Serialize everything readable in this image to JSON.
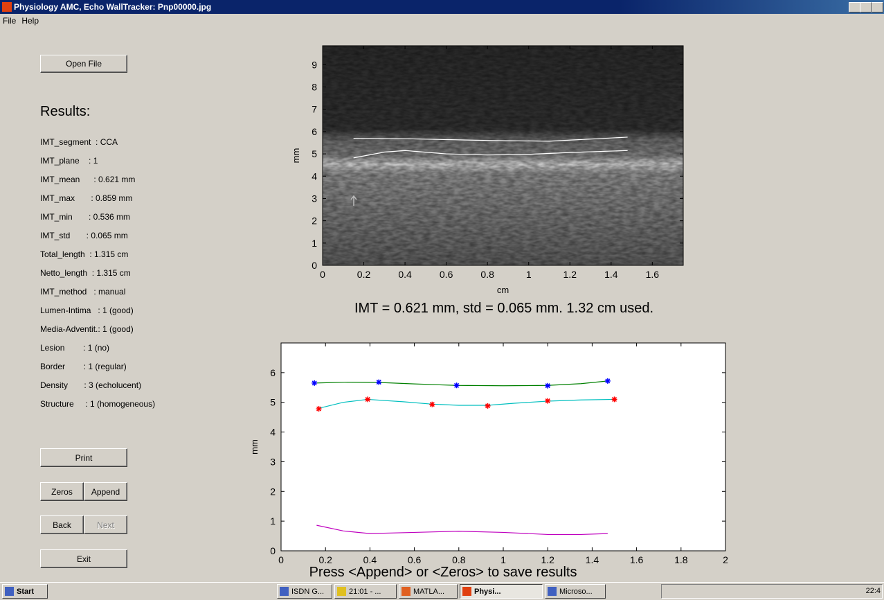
{
  "window": {
    "title": "Physiology AMC, Echo WallTracker: Pnp00000.jpg",
    "menu": [
      "File",
      "Help"
    ]
  },
  "buttons": {
    "open_file": "Open File",
    "print": "Print",
    "zeros": "Zeros",
    "append": "Append",
    "back": "Back",
    "next": "Next",
    "exit": "Exit"
  },
  "results": {
    "heading": "Results:",
    "rows": [
      "IMT_segment  : CCA",
      "IMT_plane    : 1",
      "IMT_mean      : 0.621 mm",
      "IMT_max       : 0.859 mm",
      "IMT_min       : 0.536 mm",
      "IMT_std       : 0.065 mm",
      "Total_length  : 1.315 cm",
      "Netto_length  : 1.315 cm",
      "IMT_method   : manual",
      "Lumen-Intima   : 1 (good)",
      "Media-Adventit.: 1 (good)",
      "Lesion        : 1 (no)",
      "Border        : 1 (regular)",
      "Density       : 3 (echolucent)",
      "Structure     : 1 (homogeneous)"
    ]
  },
  "chart_data": [
    {
      "type": "line",
      "xlabel": "cm",
      "ylabel": "mm",
      "caption": "IMT = 0.621 mm, std = 0.065 mm. 1.32 cm used.",
      "xlim": [
        0,
        1.75
      ],
      "ylim": [
        0,
        9.85
      ],
      "xticks": [
        0,
        0.2,
        0.4,
        0.6,
        0.8,
        1,
        1.2,
        1.4,
        1.6
      ],
      "yticks": [
        0,
        1,
        2,
        3,
        4,
        5,
        6,
        7,
        8,
        9
      ],
      "series": [
        {
          "color": "#ffffff",
          "linestyle": "-",
          "x": [
            0.15,
            0.4,
            0.8,
            1.1,
            1.48
          ],
          "values": [
            5.7,
            5.68,
            5.6,
            5.57,
            5.75
          ]
        },
        {
          "color": "#ffffff",
          "linestyle": "-",
          "x": [
            0.15,
            0.3,
            0.4,
            0.6,
            0.8,
            1.0,
            1.2,
            1.48
          ],
          "values": [
            4.82,
            5.08,
            5.15,
            5.0,
            4.95,
            4.98,
            5.06,
            5.15
          ]
        }
      ]
    },
    {
      "type": "line",
      "ylabel": "mm",
      "caption": "Press <Append> or <Zeros> to save results",
      "xlim": [
        0,
        2
      ],
      "ylim": [
        0,
        7
      ],
      "xticks": [
        0,
        0.2,
        0.4,
        0.6,
        0.8,
        1,
        1.2,
        1.4,
        1.6,
        1.8,
        2
      ],
      "yticks": [
        0,
        1,
        2,
        3,
        4,
        5,
        6
      ],
      "series": [
        {
          "color": "#008000",
          "linestyle": "-",
          "x": [
            0.15,
            0.3,
            0.44,
            0.6,
            0.79,
            1.0,
            1.2,
            1.35,
            1.47
          ],
          "values": [
            5.65,
            5.68,
            5.67,
            5.62,
            5.57,
            5.56,
            5.57,
            5.63,
            5.72
          ]
        },
        {
          "color": "#00bfbf",
          "linestyle": "-",
          "x": [
            0.17,
            0.28,
            0.39,
            0.55,
            0.68,
            0.8,
            0.93,
            1.05,
            1.2,
            1.35,
            1.5
          ],
          "values": [
            4.8,
            5.0,
            5.1,
            5.02,
            4.94,
            4.9,
            4.9,
            4.97,
            5.04,
            5.08,
            5.1
          ]
        },
        {
          "color": "#bf00bf",
          "linestyle": "-",
          "x": [
            0.16,
            0.28,
            0.4,
            0.6,
            0.8,
            1.0,
            1.2,
            1.35,
            1.47
          ],
          "values": [
            0.86,
            0.67,
            0.58,
            0.62,
            0.66,
            0.62,
            0.55,
            0.55,
            0.58
          ]
        },
        {
          "color": "#0000ff",
          "linestyle": "none",
          "marker": "*",
          "x": [
            0.15,
            0.44,
            0.79,
            1.2,
            1.47
          ],
          "values": [
            5.65,
            5.68,
            5.57,
            5.56,
            5.72
          ]
        },
        {
          "color": "#ff0000",
          "linestyle": "none",
          "marker": "*",
          "x": [
            0.17,
            0.39,
            0.68,
            0.93,
            1.2,
            1.5
          ],
          "values": [
            4.78,
            5.1,
            4.93,
            4.88,
            5.05,
            5.1
          ]
        }
      ]
    }
  ],
  "taskbar": {
    "start": "Start",
    "tasks": [
      "ISDN G...",
      "21:01 - ...",
      "MATLA...",
      "Physi...",
      "Microso..."
    ],
    "clock": "22:4"
  }
}
